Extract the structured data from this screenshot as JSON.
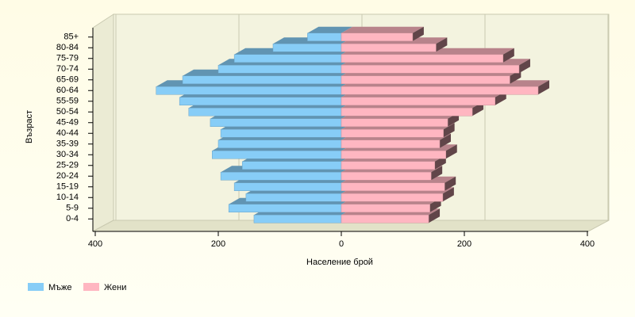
{
  "chart_data": {
    "type": "pyramid",
    "y_label": "Възраст",
    "x_label": "Население брой",
    "categories": [
      "0-4",
      "5-9",
      "10-14",
      "15-19",
      "20-24",
      "25-29",
      "30-34",
      "35-39",
      "40-44",
      "45-49",
      "50-54",
      "55-59",
      "60-64",
      "65-69",
      "70-74",
      "75-79",
      "80-84",
      "85+"
    ],
    "series": [
      {
        "name": "Мъже",
        "color": "#87cdf7",
        "values": [
          142,
          183,
          155,
          174,
          196,
          161,
          210,
          200,
          196,
          213,
          248,
          263,
          301,
          258,
          200,
          174,
          111,
          55
        ]
      },
      {
        "name": "Жени",
        "color": "#ffb6c1",
        "values": [
          142,
          144,
          165,
          168,
          146,
          152,
          170,
          160,
          166,
          173,
          213,
          250,
          320,
          274,
          289,
          263,
          154,
          116
        ]
      }
    ],
    "xlim": [
      -400,
      400
    ],
    "xticks": [
      {
        "value": -400,
        "label": "400"
      },
      {
        "value": -200,
        "label": "200"
      },
      0,
      200,
      400
    ],
    "grid": true,
    "legend": "bottom-left"
  }
}
